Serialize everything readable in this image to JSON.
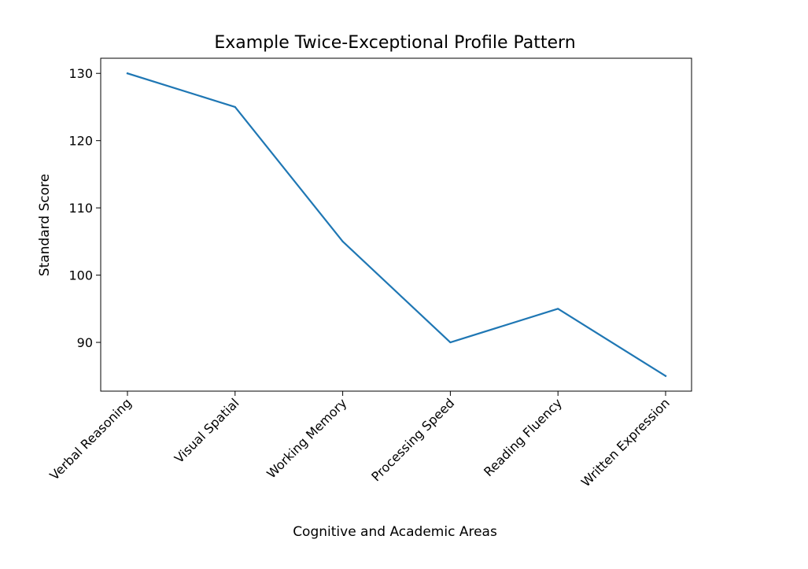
{
  "chart_data": {
    "type": "line",
    "title": "Example Twice-Exceptional Profile Pattern",
    "xlabel": "Cognitive and Academic Areas",
    "ylabel": "Standard Score",
    "categories": [
      "Verbal Reasoning",
      "Visual Spatial",
      "Working Memory",
      "Processing Speed",
      "Reading Fluency",
      "Written Expression"
    ],
    "values": [
      130,
      125,
      105,
      90,
      95,
      85
    ],
    "yticks": [
      90,
      100,
      110,
      120,
      130
    ],
    "ylim": [
      82.75,
      132.25
    ],
    "grid": false,
    "legend": "none",
    "line_color": "#1f77b4"
  }
}
